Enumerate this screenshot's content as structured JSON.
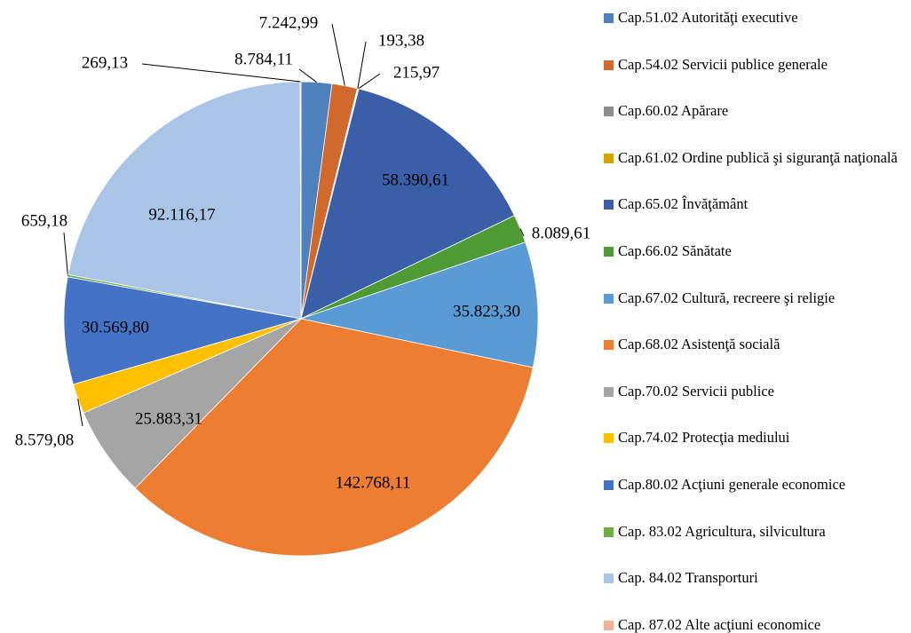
{
  "chart_data": {
    "type": "pie",
    "categories": [
      "Cap.51.02 Autorităţi executive",
      "Cap.54.02 Servicii publice generale",
      "Cap.60.02 Apărare",
      "Cap.61.02 Ordine publică şi siguranţă naţională",
      "Cap.65.02 Învăţământ",
      "Cap.66.02 Sănătate",
      "Cap.67.02 Cultură, recreere şi religie",
      "Cap.68.02 Asistenţă socială",
      "Cap.70.02 Servicii publice",
      "Cap.74.02 Protecţia mediului",
      "Cap.80.02 Acţiuni generale economice",
      "Cap. 83.02 Agricultura, silvicultura",
      "Cap. 84.02 Transporturi",
      "Cap. 87.02 Alte acţiuni economice"
    ],
    "values": [
      8784.11,
      7242.99,
      193.38,
      215.97,
      58390.61,
      8089.61,
      35823.3,
      142768.11,
      25883.31,
      8579.08,
      30569.8,
      659.18,
      92116.17,
      269.13
    ],
    "value_labels": [
      "8.784,11",
      "7.242,99",
      "193,38",
      "215,97",
      "58.390,61",
      "8.089,61",
      "35.823,30",
      "142.768,11",
      "25.883,31",
      "8.579,08",
      "30.569,80",
      "659,18",
      "92.116,17",
      "269,13"
    ],
    "colors": [
      "#4e81bd",
      "#d0692b",
      "#8e8e8e",
      "#d3a400",
      "#3a5ea8",
      "#4e9a35",
      "#5b9bd5",
      "#ed7d31",
      "#a5a5a5",
      "#ffc000",
      "#4472c4",
      "#70ad47",
      "#a9c4e6",
      "#f4b09a"
    ],
    "legend": "right"
  }
}
